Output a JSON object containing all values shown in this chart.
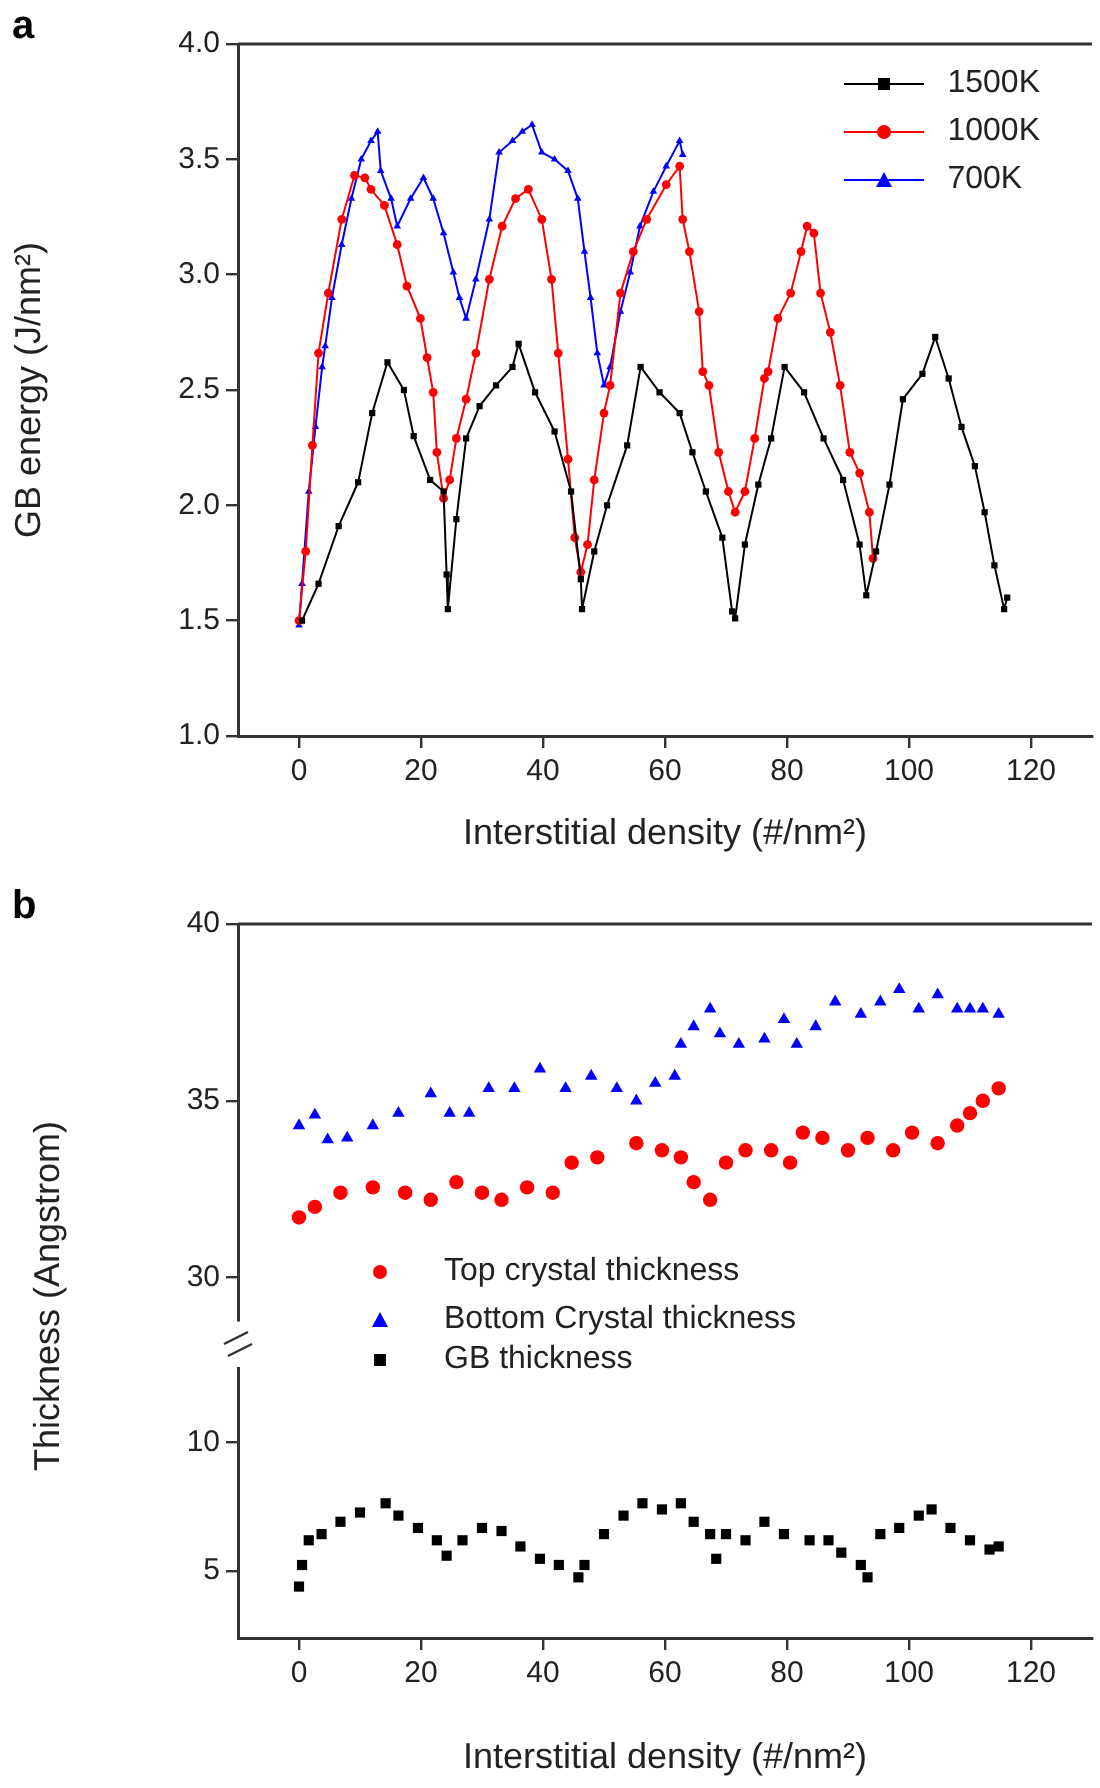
{
  "chart_data": [
    {
      "type": "line",
      "title": "a",
      "xlabel": "Interstitial density (#/nm²)",
      "ylabel": "GB energy (J/nm²)",
      "xlim": [
        -10,
        130
      ],
      "xticks": [
        0,
        20,
        40,
        60,
        80,
        100,
        120
      ],
      "ylim": [
        1,
        4
      ],
      "yticks": [
        {
          "value": 1,
          "label": "1.0"
        },
        {
          "value": 1.5,
          "label": "1.5"
        },
        {
          "value": 2,
          "label": "2.0"
        },
        {
          "value": 2.5,
          "label": "2.5"
        },
        {
          "value": 3,
          "label": "3.0"
        },
        {
          "value": 3.5,
          "label": "3.5"
        },
        {
          "value": 4,
          "label": "4.0"
        }
      ],
      "legend": "top right",
      "series": [
        {
          "name": "1500K",
          "color": "#000000",
          "marker": "square",
          "x": [
            0.5,
            3.2,
            6.5,
            9.7,
            12,
            14.5,
            17.2,
            18.8,
            21.5,
            23.7,
            24.2,
            24.4,
            25.8,
            27.4,
            29.6,
            32.3,
            35,
            36,
            38.7,
            41.9,
            44.6,
            46.2,
            46.4,
            48.4,
            50.5,
            53.8,
            56,
            59.1,
            62.4,
            64.5,
            66.7,
            69.4,
            71,
            71.5,
            73.1,
            75.3,
            77.4,
            79.6,
            82.8,
            86,
            89.2,
            91.9,
            93,
            94.6,
            96.8,
            99,
            102.2,
            104.3,
            106.5,
            108.6,
            110.8,
            112.4,
            114,
            115.6,
            116.1
          ],
          "values": [
            1.5,
            1.66,
            1.91,
            2.1,
            2.4,
            2.62,
            2.5,
            2.3,
            2.11,
            2.06,
            1.7,
            1.55,
            1.94,
            2.29,
            2.43,
            2.52,
            2.6,
            2.7,
            2.49,
            2.32,
            2.06,
            1.68,
            1.55,
            1.8,
            2,
            2.26,
            2.6,
            2.49,
            2.4,
            2.23,
            2.06,
            1.86,
            1.54,
            1.51,
            1.83,
            2.09,
            2.29,
            2.6,
            2.49,
            2.29,
            2.11,
            1.83,
            1.61,
            1.8,
            2.09,
            2.46,
            2.57,
            2.73,
            2.55,
            2.34,
            2.17,
            1.97,
            1.74,
            1.55,
            1.6
          ]
        },
        {
          "name": "1000K",
          "color": "#ff0000",
          "marker": "circle",
          "x": [
            0,
            1.1,
            2.2,
            3.2,
            4.8,
            7,
            9.1,
            10.8,
            11.8,
            14,
            16.1,
            17.7,
            19.9,
            21,
            22,
            22.6,
            23.7,
            24.7,
            25.8,
            27.4,
            29,
            31.2,
            33.3,
            35.5,
            37.6,
            39.8,
            41.4,
            42.5,
            44.1,
            45.2,
            46.2,
            47.3,
            48.4,
            50,
            51,
            52.7,
            54.8,
            57,
            60.2,
            62.4,
            62.9,
            64,
            65.6,
            66.2,
            67.2,
            68.8,
            70.4,
            71.5,
            73.1,
            74.7,
            76.3,
            76.9,
            78.5,
            80.6,
            82.3,
            83.3,
            84.4,
            85.5,
            87.1,
            88.7,
            90.3,
            91.9,
            93.5,
            94.1
          ],
          "values": [
            1.5,
            1.8,
            2.26,
            2.66,
            2.92,
            3.24,
            3.43,
            3.42,
            3.37,
            3.3,
            3.13,
            2.95,
            2.81,
            2.64,
            2.49,
            2.23,
            2.03,
            2.11,
            2.29,
            2.46,
            2.66,
            2.98,
            3.21,
            3.33,
            3.37,
            3.24,
            2.98,
            2.66,
            2.2,
            1.86,
            1.71,
            1.83,
            2.11,
            2.4,
            2.52,
            2.92,
            3.1,
            3.24,
            3.39,
            3.47,
            3.24,
            3.1,
            2.84,
            2.58,
            2.52,
            2.23,
            2.06,
            1.97,
            2.06,
            2.29,
            2.55,
            2.58,
            2.81,
            2.92,
            3.1,
            3.21,
            3.18,
            2.92,
            2.75,
            2.52,
            2.23,
            2.14,
            1.97,
            1.77
          ]
        },
        {
          "name": "700K",
          "color": "#0000ff",
          "marker": "triangle",
          "x": [
            0,
            0.5,
            1.6,
            2.7,
            3.8,
            4.3,
            5.4,
            7,
            8.6,
            10.2,
            11.8,
            12.9,
            13.4,
            15.1,
            16.1,
            18.3,
            20.4,
            22,
            23.7,
            25.3,
            26.3,
            27.4,
            29,
            31.2,
            32.8,
            35,
            36.6,
            38.2,
            39.8,
            41.9,
            44.1,
            45.7,
            46.8,
            47.8,
            48.9,
            50,
            51,
            52.7,
            54.3,
            55.9,
            58.1,
            60.2,
            62.4,
            62.9
          ],
          "values": [
            1.48,
            1.66,
            2.06,
            2.34,
            2.6,
            2.69,
            2.9,
            3.13,
            3.33,
            3.5,
            3.58,
            3.62,
            3.45,
            3.33,
            3.21,
            3.33,
            3.42,
            3.33,
            3.18,
            3.01,
            2.9,
            2.81,
            2.98,
            3.24,
            3.53,
            3.58,
            3.62,
            3.65,
            3.53,
            3.5,
            3.45,
            3.33,
            3.1,
            2.9,
            2.66,
            2.52,
            2.6,
            2.84,
            3.01,
            3.21,
            3.36,
            3.47,
            3.58,
            3.52
          ]
        }
      ]
    },
    {
      "type": "scatter",
      "title": "b",
      "ylabel": "Thickness (Angstrom)",
      "xlim": [
        -10,
        130
      ],
      "ylim": [
        28.8,
        40
      ],
      "yticks": [
        30,
        35,
        40
      ],
      "tick_labels": "y",
      "legend": "bottom",
      "series": [
        {
          "name": "Top crystal thickness",
          "color": "#ff0000",
          "marker": "circle",
          "x": [
            0,
            2.6,
            6.8,
            12.1,
            17.4,
            21.6,
            25.8,
            30,
            33.2,
            37.4,
            41.6,
            44.7,
            48.9,
            55.3,
            59.5,
            62.6,
            64.7,
            67.4,
            70,
            73.2,
            77.4,
            80.5,
            82.6,
            85.8,
            90,
            93.2,
            97.4,
            100.5,
            104.7,
            107.9,
            110,
            112.1,
            114.7
          ],
          "values": [
            31.7,
            32,
            32.4,
            32.55,
            32.4,
            32.2,
            32.7,
            32.4,
            32.2,
            32.55,
            32.4,
            33.25,
            33.4,
            33.8,
            33.6,
            33.4,
            32.7,
            32.2,
            33.25,
            33.6,
            33.6,
            33.25,
            34.1,
            33.95,
            33.6,
            33.95,
            33.6,
            34.1,
            33.8,
            34.3,
            34.65,
            35,
            35.35
          ]
        },
        {
          "name": "Bottom Crystal thickness",
          "color": "#0000ff",
          "marker": "triangle",
          "x": [
            0,
            2.6,
            4.7,
            7.9,
            12.1,
            16.3,
            21.6,
            24.7,
            27.9,
            31.1,
            35.3,
            39.5,
            43.7,
            47.9,
            52.1,
            55.3,
            58.4,
            61.6,
            62.6,
            64.7,
            67.4,
            69,
            72.1,
            76.3,
            79.5,
            81.6,
            84.7,
            87.9,
            92.1,
            95.3,
            98.4,
            101.6,
            104.7,
            107.9,
            110,
            112.1,
            114.7
          ],
          "values": [
            34.3,
            34.6,
            33.9,
            33.95,
            34.3,
            34.65,
            35.2,
            34.65,
            34.65,
            35.35,
            35.35,
            35.9,
            35.35,
            35.7,
            35.35,
            35,
            35.5,
            35.7,
            36.6,
            37.1,
            37.6,
            36.9,
            36.6,
            36.75,
            37.3,
            36.6,
            37.1,
            37.8,
            37.45,
            37.8,
            38.15,
            37.6,
            38,
            37.6,
            37.6,
            37.6,
            37.45
          ]
        }
      ]
    },
    {
      "type": "scatter",
      "xlabel": "Interstitial density (#/nm²)",
      "xlim": [
        -10,
        130
      ],
      "xticks": [
        0,
        20,
        40,
        60,
        80,
        100,
        120
      ],
      "ylim": [
        2.4,
        12.9
      ],
      "yticks": [
        5,
        10
      ],
      "legend": "top",
      "series": [
        {
          "name": "GB thickness",
          "color": "#000000",
          "marker": "square",
          "x": [
            0,
            0.5,
            1.6,
            3.7,
            6.8,
            10,
            14.2,
            16.3,
            19.5,
            22.6,
            24.2,
            26.8,
            30,
            33.2,
            36.3,
            39.5,
            42.6,
            45.8,
            46.8,
            50,
            53.2,
            56.3,
            59.5,
            62.6,
            64.7,
            67.4,
            68.4,
            70,
            73.2,
            76.3,
            79.5,
            83.7,
            86.8,
            88.9,
            92.1,
            93.2,
            95.3,
            98.4,
            101.6,
            103.7,
            106.8,
            110,
            113.2,
            114.7
          ],
          "values": [
            4.4,
            5.24,
            6.2,
            6.44,
            6.92,
            7.28,
            7.64,
            7.16,
            6.68,
            6.2,
            5.6,
            6.2,
            6.68,
            6.56,
            5.96,
            5.48,
            5.24,
            4.76,
            5.24,
            6.44,
            7.16,
            7.64,
            7.4,
            7.64,
            6.92,
            6.44,
            5.48,
            6.44,
            6.2,
            6.92,
            6.44,
            6.2,
            6.2,
            5.72,
            5.24,
            4.76,
            6.44,
            6.68,
            7.16,
            7.4,
            6.68,
            6.2,
            5.84,
            5.96
          ]
        }
      ]
    }
  ]
}
